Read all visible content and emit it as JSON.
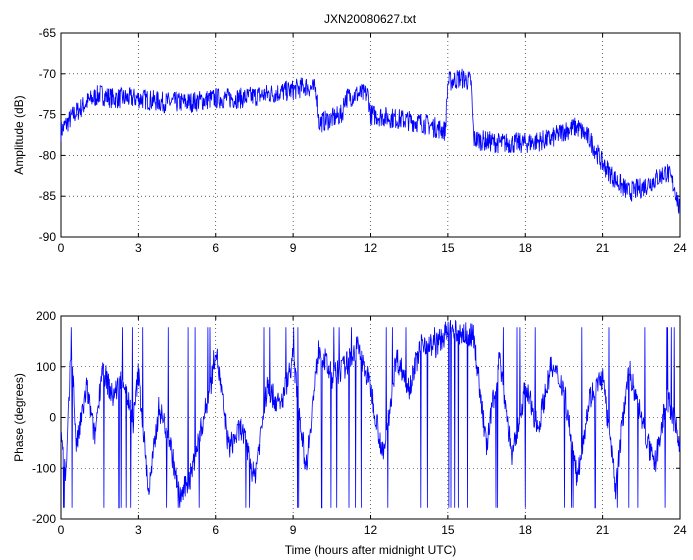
{
  "figure_title": "JXN20080627.txt",
  "colors": {
    "line": "#0000ff",
    "axes": "#000000",
    "grid": "#000000",
    "background": "#ffffff"
  },
  "chart_data": [
    {
      "type": "line",
      "title": "JXN20080627.txt",
      "xlabel": "",
      "ylabel": "Amplitude (dB)",
      "xlim": [
        0,
        24
      ],
      "ylim": [
        -90,
        -65
      ],
      "xticks": [
        "0",
        "3",
        "6",
        "9",
        "12",
        "15",
        "18",
        "21",
        "24"
      ],
      "yticks": [
        "-90",
        "-85",
        "-80",
        "-75",
        "-70",
        "-65"
      ],
      "grid": true,
      "series": [
        {
          "x": [
            0,
            0.5,
            1,
            1.5,
            2,
            3,
            4,
            5,
            6,
            7,
            8,
            9,
            9.5,
            9.9,
            10,
            10.5,
            10.9,
            11,
            11.5,
            11.9,
            12,
            13,
            14,
            14.9,
            15,
            15.5,
            15.9,
            16,
            17,
            18,
            19,
            19.5,
            20,
            20.5,
            21,
            21.5,
            22,
            22.5,
            23,
            23.5,
            23.8,
            24
          ],
          "y": [
            -77,
            -75,
            -73.5,
            -72.5,
            -73,
            -73,
            -73.5,
            -73.5,
            -73,
            -73,
            -72.5,
            -72,
            -71.5,
            -72,
            -76,
            -75.5,
            -75,
            -73,
            -72.5,
            -72.5,
            -75,
            -75.5,
            -76,
            -77,
            -71,
            -70.5,
            -71,
            -78,
            -78.5,
            -78.5,
            -78,
            -77,
            -76.5,
            -78,
            -81,
            -83,
            -84.5,
            -84,
            -83,
            -82,
            -84,
            -87
          ]
        }
      ]
    },
    {
      "type": "line",
      "title": "",
      "xlabel": "Time (hours after midnight UTC)",
      "ylabel": "Phase (degrees)",
      "xlim": [
        0,
        24
      ],
      "ylim": [
        -200,
        200
      ],
      "xticks": [
        "0",
        "3",
        "6",
        "9",
        "12",
        "15",
        "18",
        "21",
        "24"
      ],
      "yticks": [
        "-200",
        "-100",
        "0",
        "100",
        "200"
      ],
      "grid": true,
      "series": [
        {
          "x": [
            0,
            0.2,
            0.4,
            0.6,
            1,
            1.3,
            1.6,
            2,
            2.4,
            2.8,
            3,
            3.4,
            3.8,
            4.2,
            4.6,
            5,
            5.4,
            5.8,
            6,
            6.5,
            7,
            7.5,
            8,
            8.5,
            9,
            9.5,
            10,
            10.5,
            11,
            11.5,
            12,
            12.5,
            13,
            13.5,
            14,
            14.5,
            15,
            15.5,
            16,
            16.5,
            17,
            17.5,
            18,
            18.5,
            19,
            19.5,
            20,
            20.5,
            21,
            21.5,
            22,
            22.5,
            23,
            23.5,
            24
          ],
          "y": [
            -20,
            -120,
            150,
            -60,
            60,
            -40,
            100,
            40,
            80,
            -10,
            90,
            -150,
            20,
            -40,
            -160,
            -120,
            -30,
            60,
            140,
            -60,
            -20,
            -120,
            60,
            20,
            120,
            -100,
            140,
            80,
            100,
            140,
            60,
            -80,
            120,
            60,
            150,
            140,
            170,
            165,
            160,
            -60,
            120,
            -80,
            60,
            -20,
            100,
            60,
            -120,
            40,
            80,
            -140,
            100,
            0,
            -100,
            40,
            -50
          ]
        }
      ]
    }
  ]
}
